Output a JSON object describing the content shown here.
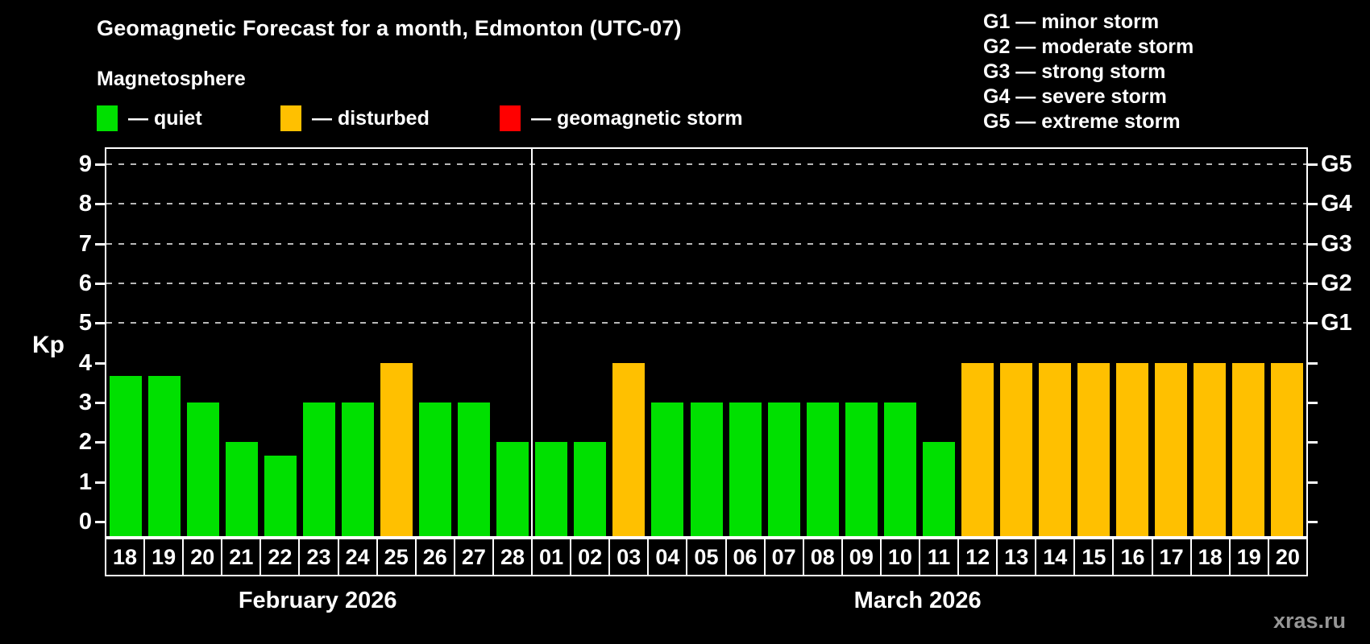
{
  "header": {
    "title": "Geomagnetic Forecast for a month, Edmonton (UTC-07)",
    "subtitle": "Magnetosphere"
  },
  "legend": {
    "items": [
      {
        "id": "quiet",
        "label": "— quiet",
        "color": "#00e000"
      },
      {
        "id": "disturbed",
        "label": "— disturbed",
        "color": "#ffc000"
      },
      {
        "id": "storm",
        "label": "— geomagnetic storm",
        "color": "#ff0000"
      }
    ]
  },
  "storm_scale": {
    "lines": [
      "G1 — minor storm",
      "G2 — moderate storm",
      "G3 — strong storm",
      "G4 — severe storm",
      "G5 — extreme storm"
    ]
  },
  "watermark": "xras.ru",
  "chart_data": {
    "type": "bar",
    "title": "Geomagnetic Forecast for a month, Edmonton (UTC-07)",
    "ylabel": "Kp",
    "ylim": [
      0,
      9
    ],
    "yticks": [
      0,
      1,
      2,
      3,
      4,
      5,
      6,
      7,
      8,
      9
    ],
    "grid_levels": [
      5,
      6,
      7,
      8,
      9
    ],
    "grid_color": "#b8b8b8",
    "right_axis_labels": [
      {
        "kp": 5,
        "label": "G1"
      },
      {
        "kp": 6,
        "label": "G2"
      },
      {
        "kp": 7,
        "label": "G3"
      },
      {
        "kp": 8,
        "label": "G4"
      },
      {
        "kp": 9,
        "label": "G5"
      }
    ],
    "status_colors": {
      "quiet": "#00e000",
      "disturbed": "#ffc000",
      "storm": "#ff0000"
    },
    "months": [
      {
        "label": "February 2026",
        "points": [
          {
            "day": "18",
            "kp": 3.67,
            "status": "quiet"
          },
          {
            "day": "19",
            "kp": 3.67,
            "status": "quiet"
          },
          {
            "day": "20",
            "kp": 3,
            "status": "quiet"
          },
          {
            "day": "21",
            "kp": 2,
            "status": "quiet"
          },
          {
            "day": "22",
            "kp": 1.67,
            "status": "quiet"
          },
          {
            "day": "23",
            "kp": 3,
            "status": "quiet"
          },
          {
            "day": "24",
            "kp": 3,
            "status": "quiet"
          },
          {
            "day": "25",
            "kp": 4,
            "status": "disturbed"
          },
          {
            "day": "26",
            "kp": 3,
            "status": "quiet"
          },
          {
            "day": "27",
            "kp": 3,
            "status": "quiet"
          },
          {
            "day": "28",
            "kp": 2,
            "status": "quiet"
          }
        ]
      },
      {
        "label": "March 2026",
        "points": [
          {
            "day": "01",
            "kp": 2,
            "status": "quiet"
          },
          {
            "day": "02",
            "kp": 2,
            "status": "quiet"
          },
          {
            "day": "03",
            "kp": 4,
            "status": "disturbed"
          },
          {
            "day": "04",
            "kp": 3,
            "status": "quiet"
          },
          {
            "day": "05",
            "kp": 3,
            "status": "quiet"
          },
          {
            "day": "06",
            "kp": 3,
            "status": "quiet"
          },
          {
            "day": "07",
            "kp": 3,
            "status": "quiet"
          },
          {
            "day": "08",
            "kp": 3,
            "status": "quiet"
          },
          {
            "day": "09",
            "kp": 3,
            "status": "quiet"
          },
          {
            "day": "10",
            "kp": 3,
            "status": "quiet"
          },
          {
            "day": "11",
            "kp": 2,
            "status": "quiet"
          },
          {
            "day": "12",
            "kp": 4,
            "status": "disturbed"
          },
          {
            "day": "13",
            "kp": 4,
            "status": "disturbed"
          },
          {
            "day": "14",
            "kp": 4,
            "status": "disturbed"
          },
          {
            "day": "15",
            "kp": 4,
            "status": "disturbed"
          },
          {
            "day": "16",
            "kp": 4,
            "status": "disturbed"
          },
          {
            "day": "17",
            "kp": 4,
            "status": "disturbed"
          },
          {
            "day": "18",
            "kp": 4,
            "status": "disturbed"
          },
          {
            "day": "19",
            "kp": 4,
            "status": "disturbed"
          },
          {
            "day": "20",
            "kp": 4,
            "status": "disturbed"
          }
        ]
      }
    ]
  }
}
